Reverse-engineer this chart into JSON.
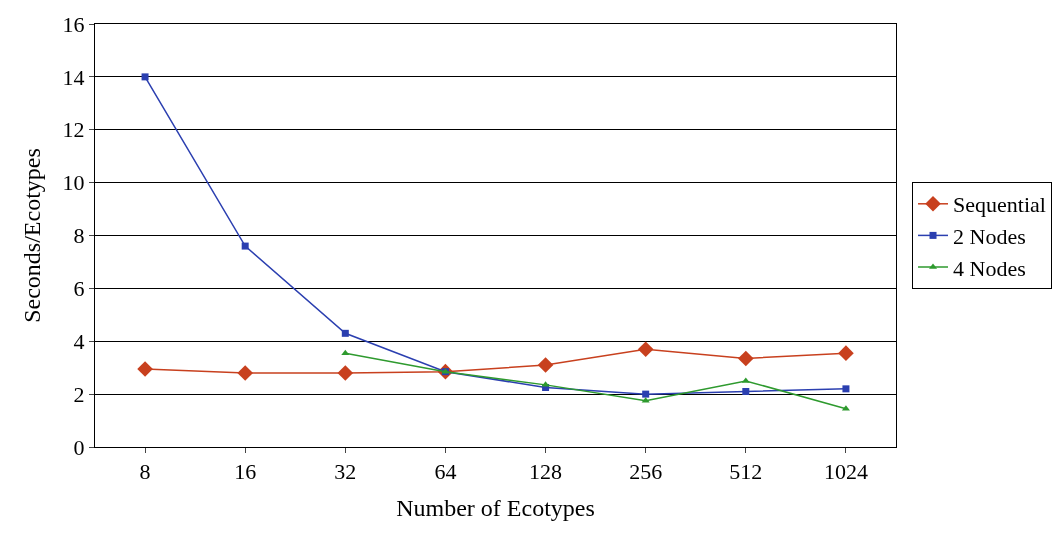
{
  "chart_data": {
    "type": "line",
    "xlabel": "Number of Ecotypes",
    "ylabel": "Seconds/Ecotypes",
    "categories": [
      "8",
      "16",
      "32",
      "64",
      "128",
      "256",
      "512",
      "1024"
    ],
    "series": [
      {
        "name": "Sequential",
        "color": "#c8401e",
        "marker": "diamond",
        "values": [
          2.95,
          2.8,
          2.8,
          2.85,
          3.1,
          3.7,
          3.35,
          3.55
        ]
      },
      {
        "name": "2 Nodes",
        "color": "#2b3fb0",
        "marker": "square",
        "values": [
          14,
          7.6,
          4.3,
          2.85,
          2.25,
          2.0,
          2.1,
          2.2
        ]
      },
      {
        "name": "4 Nodes",
        "color": "#2e9a2e",
        "marker": "triangle",
        "values": [
          null,
          null,
          3.55,
          2.85,
          2.35,
          1.75,
          2.5,
          1.45
        ]
      }
    ],
    "ylim": [
      0,
      16
    ],
    "yticks": [
      0,
      2,
      4,
      6,
      8,
      10,
      12,
      14,
      16
    ],
    "grid": "y",
    "legend": "right",
    "line_style": "solid"
  }
}
